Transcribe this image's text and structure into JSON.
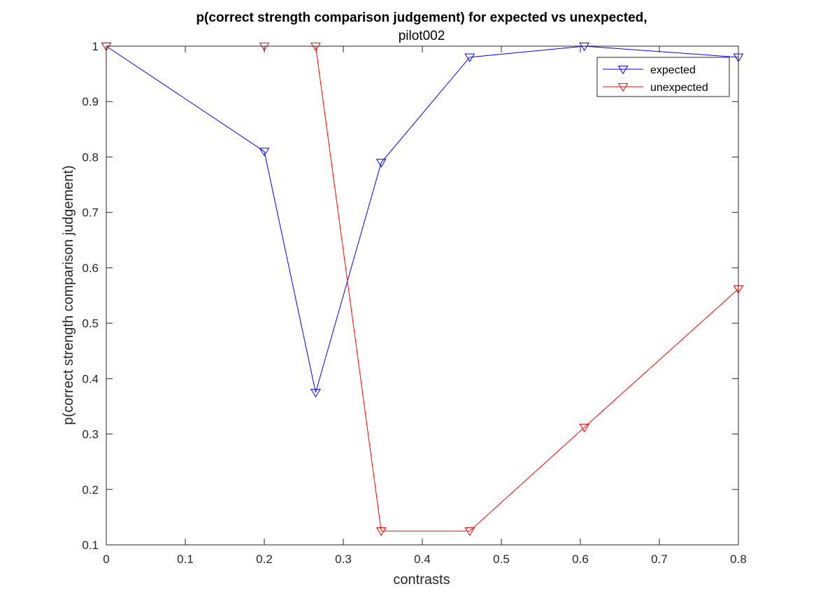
{
  "chart_data": {
    "type": "line",
    "title": "p(correct strength comparison judgement) for expected vs unexpected,",
    "subtitle": "pilot002",
    "xlabel": "contrasts",
    "ylabel": "p(correct strength comparison judgement)",
    "xlim": [
      0,
      0.8
    ],
    "ylim": [
      0.1,
      1
    ],
    "xticks": [
      0,
      0.1,
      0.2,
      0.3,
      0.4,
      0.5,
      0.6,
      0.7,
      0.8
    ],
    "yticks": [
      0.1,
      0.2,
      0.3,
      0.4,
      0.5,
      0.6,
      0.7,
      0.8,
      0.9,
      1
    ],
    "xtick_labels": [
      "0",
      "0.1",
      "0.2",
      "0.3",
      "0.4",
      "0.5",
      "0.6",
      "0.7",
      "0.8"
    ],
    "ytick_labels": [
      "0.1",
      "0.2",
      "0.3",
      "0.4",
      "0.5",
      "0.6",
      "0.7",
      "0.8",
      "0.9",
      "1"
    ],
    "grid": false,
    "legend_position": "top-right",
    "marker": "triangle-down",
    "series": [
      {
        "name": "expected",
        "color": "#0000ff",
        "x": [
          0,
          0.2,
          0.265,
          0.348,
          0.46,
          0.605,
          0.8
        ],
        "y": [
          1.0,
          0.81,
          0.375,
          0.79,
          0.98,
          1.0,
          0.98
        ]
      },
      {
        "name": "unexpected",
        "color": "#ff0000",
        "x": [
          0,
          0.2,
          0.265,
          0.348,
          0.46,
          0.605,
          0.8
        ],
        "y": [
          1.0,
          1.0,
          1.0,
          0.125,
          0.125,
          0.312,
          0.562
        ]
      }
    ]
  }
}
